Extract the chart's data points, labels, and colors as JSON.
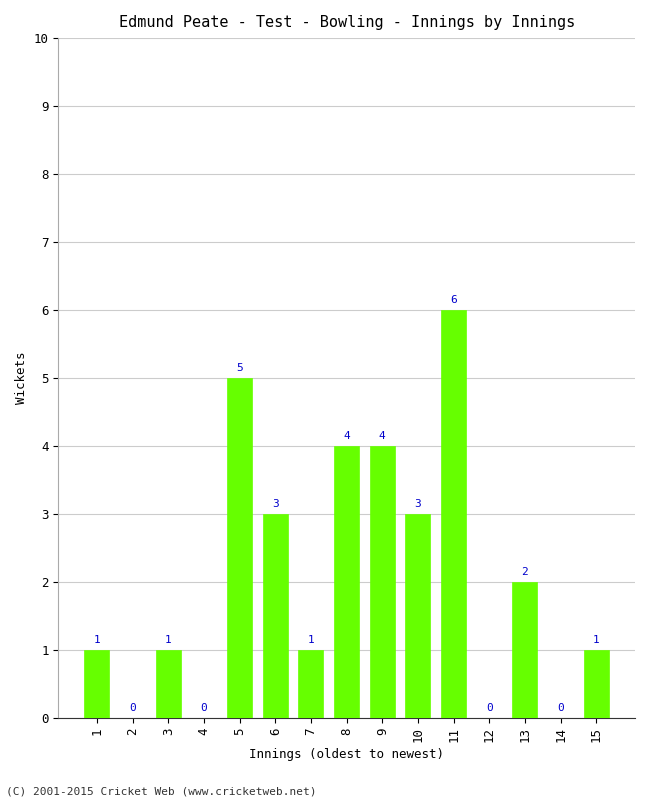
{
  "title": "Edmund Peate - Test - Bowling - Innings by Innings",
  "xlabel": "Innings (oldest to newest)",
  "ylabel": "Wickets",
  "categories": [
    1,
    2,
    3,
    4,
    5,
    6,
    7,
    8,
    9,
    10,
    11,
    12,
    13,
    14,
    15
  ],
  "values": [
    1,
    0,
    1,
    0,
    5,
    3,
    1,
    4,
    4,
    3,
    6,
    0,
    2,
    0,
    1
  ],
  "bar_color": "#66ff00",
  "bar_edge_color": "#66ff00",
  "label_color": "#0000cc",
  "ylim": [
    0,
    10
  ],
  "yticks": [
    0,
    1,
    2,
    3,
    4,
    5,
    6,
    7,
    8,
    9,
    10
  ],
  "grid_color": "#cccccc",
  "bg_color": "#ffffff",
  "title_fontsize": 11,
  "axis_label_fontsize": 9,
  "tick_fontsize": 9,
  "annotation_fontsize": 8,
  "footer": "(C) 2001-2015 Cricket Web (www.cricketweb.net)",
  "footer_fontsize": 8
}
